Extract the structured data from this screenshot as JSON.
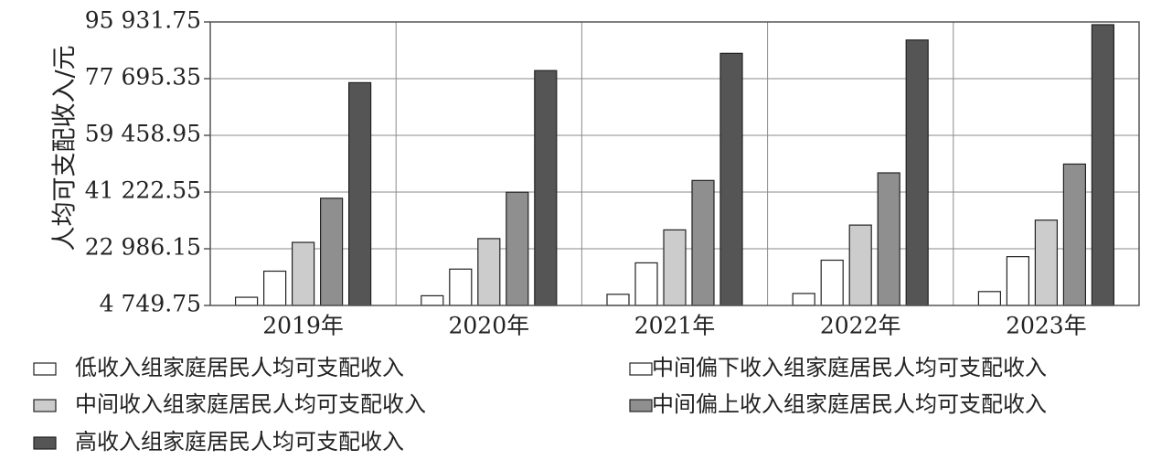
{
  "chart_data": {
    "type": "bar",
    "ylabel": "人均可支配收入/元",
    "xlabel": "",
    "categories": [
      "2019年",
      "2020年",
      "2021年",
      "2022年",
      "2023年"
    ],
    "y_ticks": [
      "4 749.75",
      "22 986.15",
      "41 222.55",
      "59 458.95",
      "77 695.35",
      "95 931.75"
    ],
    "ylim": [
      4749.75,
      95931.75
    ],
    "grid": true,
    "legend_position": "bottom",
    "series": [
      {
        "name": "低收入组家庭居民人均可支配收入",
        "color": "#ffffff",
        "values": [
          7380,
          7869,
          8333,
          8601,
          9215
        ]
      },
      {
        "name": "中间偏下收入组家庭居民人均可支配收入",
        "color": "#ffffff",
        "values": [
          15777,
          16443,
          18446,
          19303,
          20442
        ]
      },
      {
        "name": "中间收入组家庭居民人均可支配收入",
        "color": "#cccccc",
        "values": [
          25035,
          26249,
          29053,
          30598,
          32195
        ]
      },
      {
        "name": "中间偏上收入组家庭居民人均可支配收入",
        "color": "#8f8f8f",
        "values": [
          39230,
          41172,
          44949,
          47397,
          50220
        ]
      },
      {
        "name": "高收入组家庭居民人均可支配收入",
        "color": "#555555",
        "values": [
          76401,
          80294,
          85836,
          90116,
          95055
        ]
      }
    ]
  }
}
